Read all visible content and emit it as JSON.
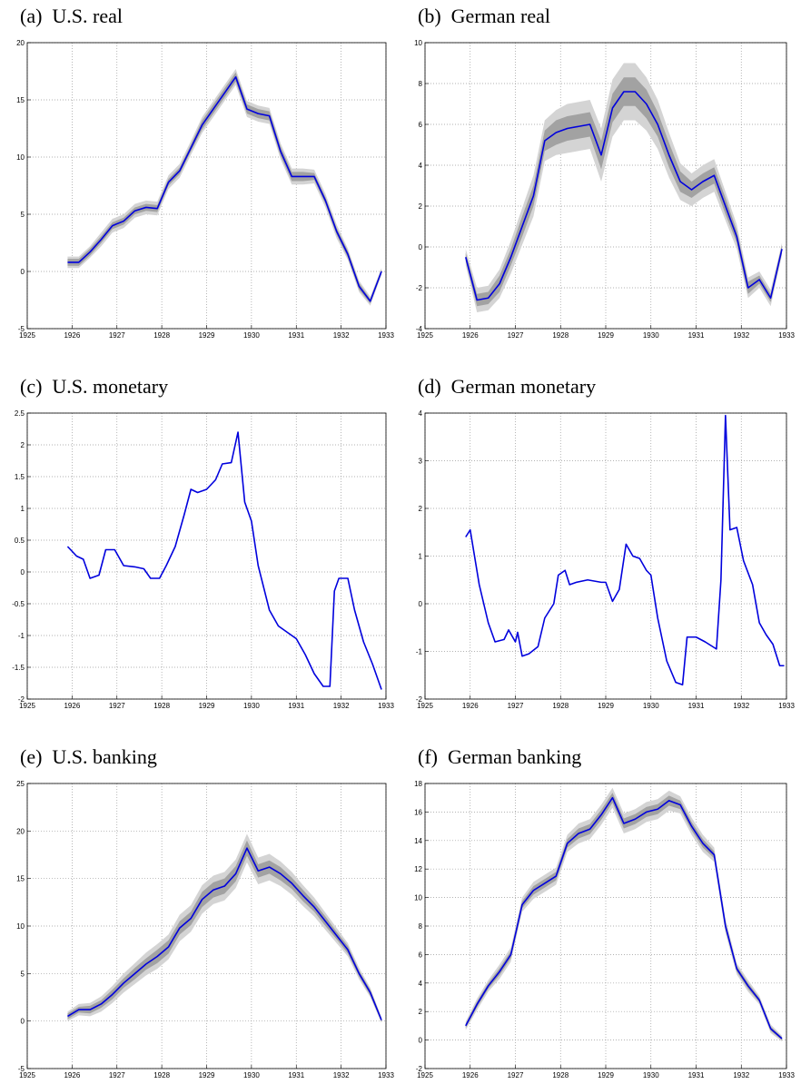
{
  "chart_data": [
    {
      "type": "line",
      "title": "(a)  U.S. real",
      "color": "#0000dd",
      "band_outer_color": "#d4d4d4",
      "band_inner_color": "#a2a2a2",
      "grid": true,
      "xlim": [
        1925,
        1933
      ],
      "xticks": [
        1925,
        1926,
        1927,
        1928,
        1929,
        1930,
        1931,
        1932,
        1933
      ],
      "ylim": [
        -5,
        20
      ],
      "yticks": [
        -5,
        0,
        5,
        10,
        15,
        20
      ],
      "x": [
        1925.9,
        1926.15,
        1926.4,
        1926.65,
        1926.9,
        1927.15,
        1927.4,
        1927.65,
        1927.9,
        1928.15,
        1928.4,
        1928.65,
        1928.9,
        1929.15,
        1929.4,
        1929.65,
        1929.9,
        1930.15,
        1930.4,
        1930.65,
        1930.9,
        1931.15,
        1931.4,
        1931.65,
        1931.9,
        1932.15,
        1932.4,
        1932.65,
        1932.9
      ],
      "values": [
        0.8,
        0.8,
        1.7,
        2.8,
        4.0,
        4.4,
        5.3,
        5.6,
        5.5,
        7.8,
        8.8,
        10.8,
        12.8,
        14.2,
        15.6,
        17.0,
        14.2,
        13.8,
        13.6,
        10.5,
        8.3,
        8.3,
        8.3,
        6.2,
        3.5,
        1.5,
        -1.3,
        -2.6,
        0.0
      ],
      "band_outer": [
        0.5,
        0.5,
        0.5,
        0.6,
        0.6,
        0.6,
        0.6,
        0.6,
        0.6,
        0.6,
        0.6,
        0.6,
        0.7,
        0.7,
        0.7,
        0.7,
        0.7,
        0.7,
        0.7,
        0.7,
        0.7,
        0.7,
        0.6,
        0.6,
        0.6,
        0.5,
        0.5,
        0.4,
        0.3
      ],
      "band_inner": [
        0.3,
        0.3,
        0.3,
        0.3,
        0.3,
        0.3,
        0.3,
        0.3,
        0.3,
        0.3,
        0.3,
        0.3,
        0.4,
        0.4,
        0.4,
        0.4,
        0.4,
        0.4,
        0.4,
        0.4,
        0.4,
        0.4,
        0.3,
        0.3,
        0.3,
        0.3,
        0.3,
        0.2,
        0.2
      ]
    },
    {
      "type": "line",
      "title": "(b)  German real",
      "color": "#0000dd",
      "band_outer_color": "#d4d4d4",
      "band_inner_color": "#a2a2a2",
      "grid": true,
      "xlim": [
        1925,
        1933
      ],
      "xticks": [
        1925,
        1926,
        1927,
        1928,
        1929,
        1930,
        1931,
        1932,
        1933
      ],
      "ylim": [
        -4,
        10
      ],
      "yticks": [
        -4,
        -2,
        0,
        2,
        4,
        6,
        8,
        10
      ],
      "x": [
        1925.9,
        1926.15,
        1926.4,
        1926.65,
        1926.9,
        1927.15,
        1927.4,
        1927.65,
        1927.9,
        1928.15,
        1928.4,
        1928.65,
        1928.9,
        1929.15,
        1929.4,
        1929.65,
        1929.9,
        1930.15,
        1930.4,
        1930.65,
        1930.9,
        1931.15,
        1931.4,
        1931.65,
        1931.9,
        1932.15,
        1932.4,
        1932.65,
        1932.9
      ],
      "values": [
        -0.5,
        -2.6,
        -2.5,
        -1.8,
        -0.5,
        1.0,
        2.5,
        5.2,
        5.6,
        5.8,
        5.9,
        6.0,
        4.5,
        6.8,
        7.6,
        7.6,
        7.0,
        6.0,
        4.5,
        3.2,
        2.8,
        3.2,
        3.5,
        2.0,
        0.5,
        -2.0,
        -1.6,
        -2.5,
        -0.1
      ],
      "band_outer": [
        0.4,
        0.6,
        0.6,
        0.7,
        0.8,
        0.9,
        1.0,
        1.0,
        1.1,
        1.2,
        1.2,
        1.2,
        1.3,
        1.4,
        1.4,
        1.4,
        1.3,
        1.2,
        1.1,
        0.9,
        0.8,
        0.8,
        0.8,
        0.7,
        0.6,
        0.5,
        0.4,
        0.4,
        0.3
      ],
      "band_inner": [
        0.2,
        0.3,
        0.3,
        0.4,
        0.4,
        0.5,
        0.5,
        0.5,
        0.6,
        0.6,
        0.6,
        0.6,
        0.7,
        0.7,
        0.7,
        0.7,
        0.7,
        0.6,
        0.6,
        0.5,
        0.4,
        0.4,
        0.4,
        0.4,
        0.3,
        0.3,
        0.2,
        0.2,
        0.2
      ]
    },
    {
      "type": "line",
      "title": "(c)  U.S. monetary",
      "color": "#0000dd",
      "grid": true,
      "xlim": [
        1925,
        1933
      ],
      "xticks": [
        1925,
        1926,
        1927,
        1928,
        1929,
        1930,
        1931,
        1932,
        1933
      ],
      "ylim": [
        -2,
        2.5
      ],
      "yticks": [
        -2,
        -1.5,
        -1,
        -0.5,
        0,
        0.5,
        1,
        1.5,
        2,
        2.5
      ],
      "x": [
        1925.9,
        1926.1,
        1926.25,
        1926.4,
        1926.6,
        1926.75,
        1926.95,
        1927.15,
        1927.4,
        1927.6,
        1927.75,
        1927.95,
        1928.1,
        1928.3,
        1928.5,
        1928.65,
        1928.8,
        1929.0,
        1929.2,
        1929.35,
        1929.55,
        1929.7,
        1929.85,
        1930.0,
        1930.15,
        1930.4,
        1930.6,
        1930.8,
        1931.0,
        1931.2,
        1931.4,
        1931.6,
        1931.75,
        1931.85,
        1931.95,
        1932.15,
        1932.3,
        1932.5,
        1932.7,
        1932.9
      ],
      "values": [
        0.4,
        0.25,
        0.2,
        -0.1,
        -0.05,
        0.35,
        0.35,
        0.1,
        0.08,
        0.05,
        -0.1,
        -0.1,
        0.1,
        0.4,
        0.9,
        1.3,
        1.25,
        1.3,
        1.45,
        1.7,
        1.72,
        2.2,
        1.1,
        0.8,
        0.1,
        -0.6,
        -0.85,
        -0.95,
        -1.05,
        -1.3,
        -1.6,
        -1.8,
        -1.8,
        -0.3,
        -0.1,
        -0.1,
        -0.6,
        -1.1,
        -1.45,
        -1.85
      ]
    },
    {
      "type": "line",
      "title": "(d)  German monetary",
      "color": "#0000dd",
      "grid": true,
      "xlim": [
        1925,
        1933
      ],
      "xticks": [
        1925,
        1926,
        1927,
        1928,
        1929,
        1930,
        1931,
        1932,
        1933
      ],
      "ylim": [
        -2,
        4
      ],
      "yticks": [
        -2,
        -1,
        0,
        1,
        2,
        3,
        4
      ],
      "x": [
        1925.9,
        1926.0,
        1926.2,
        1926.4,
        1926.55,
        1926.75,
        1926.85,
        1927.0,
        1927.05,
        1927.15,
        1927.3,
        1927.5,
        1927.65,
        1927.85,
        1927.95,
        1928.1,
        1928.2,
        1928.35,
        1928.6,
        1928.9,
        1929.0,
        1929.15,
        1929.3,
        1929.45,
        1929.6,
        1929.75,
        1929.9,
        1930.0,
        1930.15,
        1930.35,
        1930.55,
        1930.7,
        1930.8,
        1931.0,
        1931.2,
        1931.45,
        1931.55,
        1931.65,
        1931.75,
        1931.9,
        1932.05,
        1932.25,
        1932.4,
        1932.55,
        1932.7,
        1932.85,
        1932.95
      ],
      "values": [
        1.4,
        1.55,
        0.4,
        -0.4,
        -0.8,
        -0.75,
        -0.55,
        -0.8,
        -0.6,
        -1.1,
        -1.05,
        -0.9,
        -0.3,
        0.0,
        0.6,
        0.7,
        0.4,
        0.45,
        0.5,
        0.45,
        0.45,
        0.05,
        0.3,
        1.25,
        1.0,
        0.95,
        0.7,
        0.6,
        -0.3,
        -1.2,
        -1.65,
        -1.7,
        -0.7,
        -0.7,
        -0.8,
        -0.95,
        0.5,
        3.95,
        1.55,
        1.6,
        0.9,
        0.4,
        -0.4,
        -0.65,
        -0.85,
        -1.3,
        -1.3
      ]
    },
    {
      "type": "line",
      "title": "(e)  U.S. banking",
      "color": "#0000dd",
      "band_outer_color": "#d4d4d4",
      "band_inner_color": "#a2a2a2",
      "grid": true,
      "xlim": [
        1925,
        1933
      ],
      "xticks": [
        1925,
        1926,
        1927,
        1928,
        1929,
        1930,
        1931,
        1932,
        1933
      ],
      "ylim": [
        -5,
        25
      ],
      "yticks": [
        -5,
        0,
        5,
        10,
        15,
        20,
        25
      ],
      "x": [
        1925.9,
        1926.15,
        1926.4,
        1926.65,
        1926.9,
        1927.15,
        1927.4,
        1927.65,
        1927.9,
        1928.15,
        1928.4,
        1928.65,
        1928.9,
        1929.15,
        1929.4,
        1929.65,
        1929.9,
        1930.15,
        1930.4,
        1930.65,
        1930.9,
        1931.15,
        1931.4,
        1931.65,
        1931.9,
        1932.15,
        1932.4,
        1932.65,
        1932.9
      ],
      "values": [
        0.5,
        1.2,
        1.2,
        1.8,
        2.8,
        4.0,
        5.0,
        6.0,
        6.8,
        7.8,
        9.8,
        10.8,
        12.8,
        13.8,
        14.2,
        15.5,
        18.2,
        15.8,
        16.2,
        15.5,
        14.5,
        13.2,
        12.0,
        10.5,
        9.0,
        7.5,
        5.0,
        3.0,
        0.1
      ],
      "band_outer": [
        0.5,
        0.6,
        0.7,
        0.8,
        0.9,
        1.0,
        1.1,
        1.2,
        1.3,
        1.3,
        1.4,
        1.4,
        1.5,
        1.5,
        1.5,
        1.5,
        1.5,
        1.4,
        1.4,
        1.3,
        1.2,
        1.1,
        1.0,
        0.9,
        0.8,
        0.7,
        0.6,
        0.5,
        0.3
      ],
      "band_inner": [
        0.3,
        0.3,
        0.4,
        0.4,
        0.5,
        0.5,
        0.6,
        0.6,
        0.7,
        0.7,
        0.7,
        0.7,
        0.8,
        0.8,
        0.8,
        0.8,
        0.8,
        0.7,
        0.7,
        0.7,
        0.6,
        0.6,
        0.5,
        0.5,
        0.4,
        0.4,
        0.3,
        0.3,
        0.2
      ]
    },
    {
      "type": "line",
      "title": "(f)  German banking",
      "color": "#0000dd",
      "band_outer_color": "#d4d4d4",
      "band_inner_color": "#a2a2a2",
      "grid": true,
      "xlim": [
        1925,
        1933
      ],
      "xticks": [
        1925,
        1926,
        1927,
        1928,
        1929,
        1930,
        1931,
        1932,
        1933
      ],
      "ylim": [
        -2,
        18
      ],
      "yticks": [
        -2,
        0,
        2,
        4,
        6,
        8,
        10,
        12,
        14,
        16,
        18
      ],
      "x": [
        1925.9,
        1926.15,
        1926.4,
        1926.65,
        1926.9,
        1927.15,
        1927.4,
        1927.65,
        1927.9,
        1928.15,
        1928.4,
        1928.65,
        1928.9,
        1929.15,
        1929.4,
        1929.65,
        1929.9,
        1930.15,
        1930.4,
        1930.65,
        1930.9,
        1931.15,
        1931.4,
        1931.65,
        1931.9,
        1932.15,
        1932.4,
        1932.65,
        1932.9
      ],
      "values": [
        1.0,
        2.5,
        3.8,
        4.8,
        6.0,
        9.5,
        10.5,
        11.0,
        11.5,
        13.8,
        14.5,
        14.8,
        15.8,
        17.0,
        15.2,
        15.5,
        16.0,
        16.2,
        16.8,
        16.5,
        15.0,
        13.8,
        13.0,
        8.0,
        5.0,
        3.8,
        2.8,
        0.8,
        0.1
      ],
      "band_outer": [
        0.3,
        0.4,
        0.4,
        0.5,
        0.5,
        0.5,
        0.6,
        0.6,
        0.6,
        0.6,
        0.7,
        0.7,
        0.7,
        0.7,
        0.7,
        0.7,
        0.7,
        0.7,
        0.7,
        0.6,
        0.6,
        0.6,
        0.5,
        0.5,
        0.4,
        0.4,
        0.3,
        0.3,
        0.2
      ],
      "band_inner": [
        0.15,
        0.2,
        0.2,
        0.25,
        0.25,
        0.25,
        0.3,
        0.3,
        0.3,
        0.3,
        0.35,
        0.35,
        0.35,
        0.35,
        0.35,
        0.35,
        0.35,
        0.35,
        0.35,
        0.3,
        0.3,
        0.3,
        0.25,
        0.25,
        0.2,
        0.2,
        0.15,
        0.15,
        0.1
      ]
    }
  ]
}
